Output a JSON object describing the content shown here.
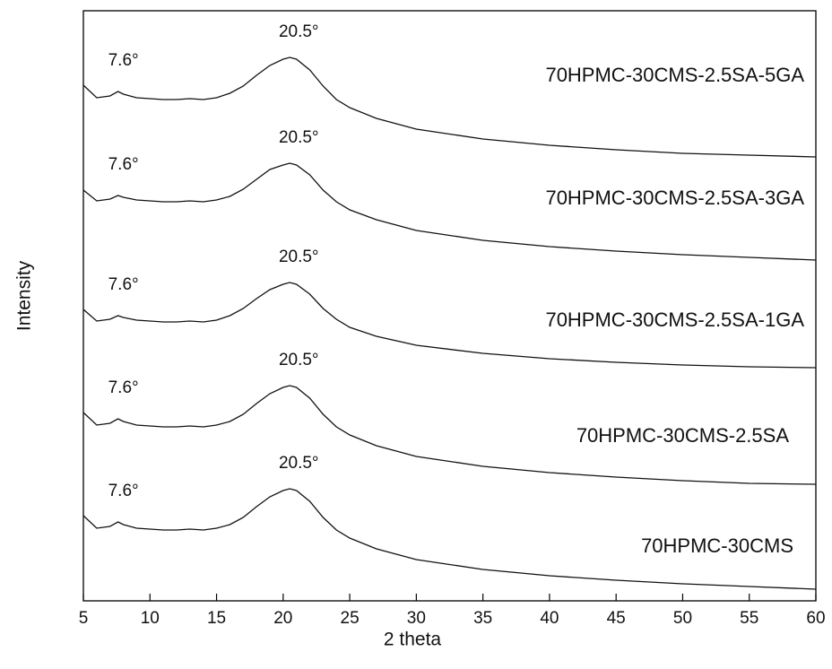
{
  "chart_data": {
    "type": "line",
    "x_label": "2 theta",
    "y_label": "Intensity",
    "x": [
      5,
      6,
      7,
      7.6,
      8,
      9,
      10,
      11,
      12,
      13,
      14,
      15,
      16,
      17,
      18,
      19,
      20,
      20.5,
      21,
      22,
      23,
      24,
      25,
      27,
      30,
      35,
      40,
      45,
      50,
      55,
      60
    ],
    "xlim": [
      5,
      60
    ],
    "xticks": [
      5,
      10,
      15,
      20,
      25,
      30,
      35,
      40,
      45,
      50,
      55,
      60
    ],
    "ylim": [
      0,
      658
    ],
    "series": [
      {
        "name": "70HPMC-30CMS-2.5SA-5GA",
        "color": "#111111",
        "annotations": [
          "7.6°",
          "20.5°"
        ],
        "values": [
          575,
          561,
          563,
          568,
          565,
          561,
          560,
          559,
          559,
          560,
          559,
          561,
          566,
          574,
          586,
          597,
          604,
          606,
          604,
          592,
          574,
          559,
          550,
          538,
          526,
          515,
          508,
          503,
          499,
          497,
          495
        ]
      },
      {
        "name": "70HPMC-30CMS-2.5SA-3GA",
        "color": "#111111",
        "annotations": [
          "7.6°",
          "20.5°"
        ],
        "values": [
          458,
          446,
          448,
          452,
          450,
          447,
          446,
          445,
          445,
          446,
          445,
          447,
          451,
          459,
          470,
          481,
          486,
          488,
          486,
          475,
          458,
          445,
          436,
          425,
          413,
          402,
          395,
          390,
          386,
          383,
          380
        ]
      },
      {
        "name": "70HPMC-30CMS-2.5SA-1GA",
        "color": "#111111",
        "annotations": [
          "7.6°",
          "20.5°"
        ],
        "values": [
          325,
          312,
          314,
          318,
          316,
          313,
          312,
          311,
          311,
          312,
          311,
          313,
          318,
          326,
          337,
          347,
          353,
          355,
          353,
          342,
          326,
          314,
          305,
          295,
          285,
          276,
          270,
          266,
          263,
          261,
          260
        ]
      },
      {
        "name": "70HPMC-30CMS-2.5SA",
        "color": "#111111",
        "annotations": [
          "7.6°",
          "20.5°"
        ],
        "values": [
          210,
          196,
          198,
          203,
          200,
          196,
          195,
          194,
          194,
          195,
          194,
          196,
          200,
          208,
          220,
          231,
          238,
          240,
          238,
          226,
          208,
          194,
          185,
          173,
          161,
          150,
          143,
          138,
          134,
          131,
          130
        ]
      },
      {
        "name": "70HPMC-30CMS",
        "color": "#111111",
        "annotations": [
          "7.6°",
          "20.5°"
        ],
        "values": [
          95,
          81,
          83,
          88,
          85,
          81,
          80,
          79,
          79,
          80,
          79,
          81,
          85,
          93,
          105,
          116,
          123,
          125,
          123,
          111,
          93,
          79,
          70,
          58,
          46,
          35,
          28,
          23,
          19,
          16,
          13
        ]
      }
    ]
  }
}
